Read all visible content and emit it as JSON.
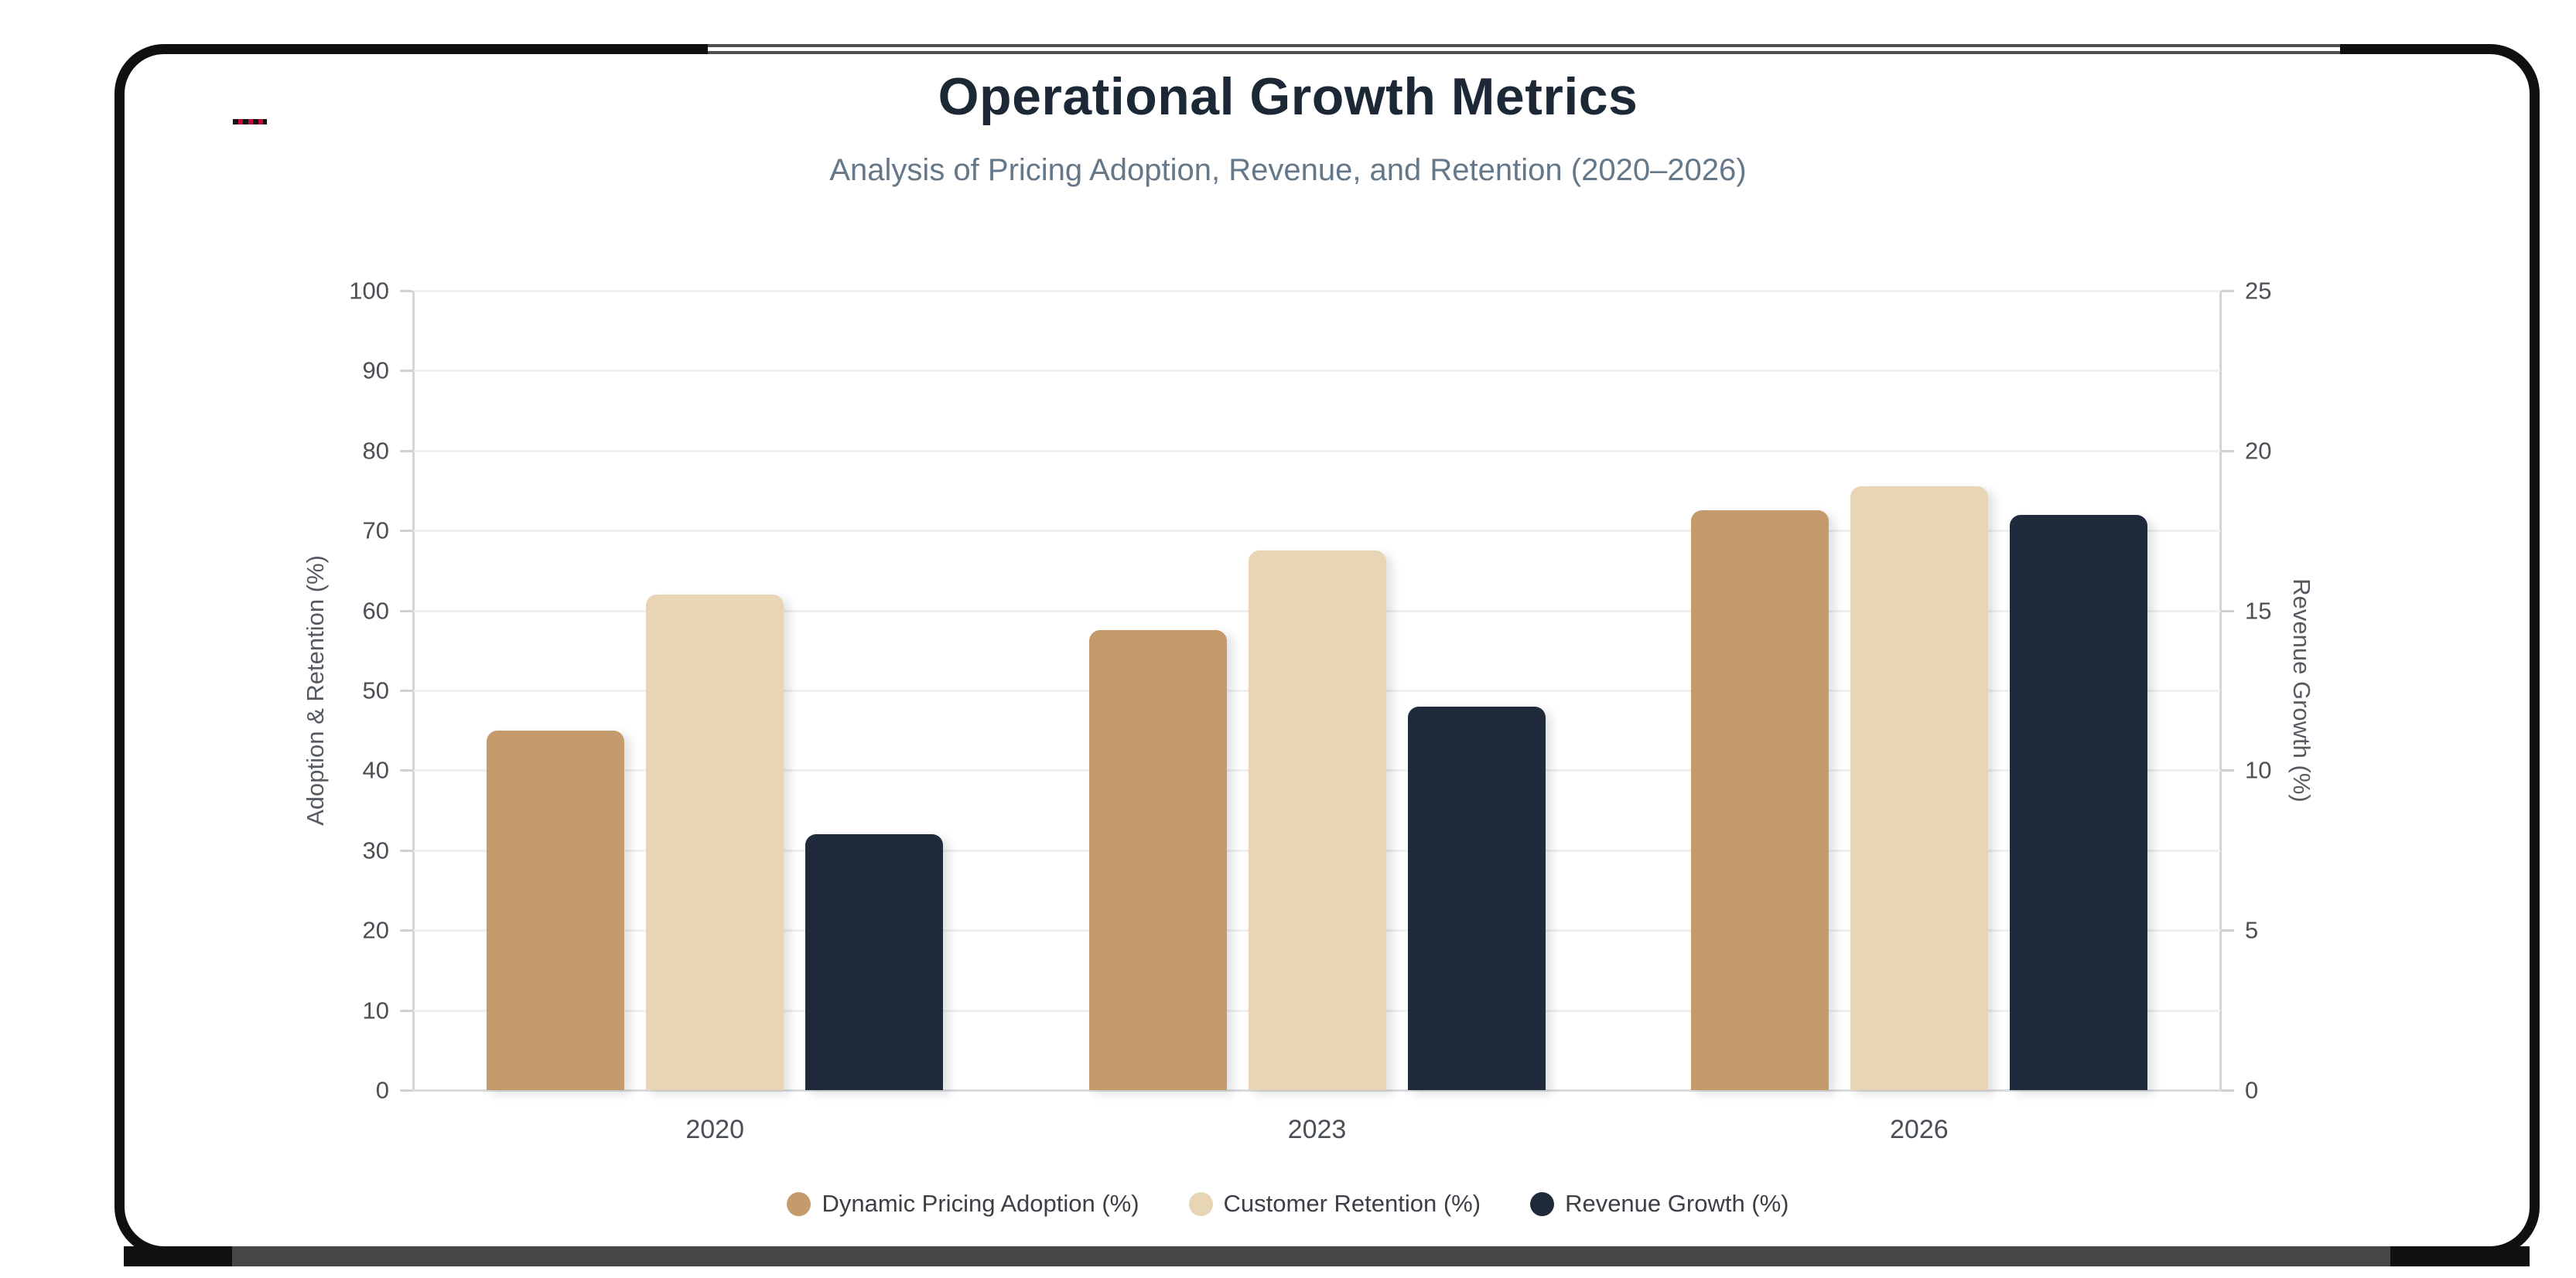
{
  "page": {
    "background": "#ffffff",
    "frame_border_color": "#101010",
    "frame_gray_accent": "#4f4f4f",
    "bottom_bar_color": "#474747",
    "red_dash_mark_colors": [
      "#151515",
      "#c40a38"
    ]
  },
  "chart_data": {
    "type": "bar",
    "title": "Operational Growth Metrics",
    "subtitle": "Analysis of Pricing Adoption, Revenue, and Retention (2020–2026)",
    "categories": [
      "2020",
      "2023",
      "2026"
    ],
    "series": [
      {
        "name": "Dynamic Pricing Adoption (%)",
        "color": "#c69b6c",
        "axis": "left",
        "values": [
          45,
          57.5,
          72.5
        ]
      },
      {
        "name": "Customer Retention (%)",
        "color": "#e8d5b6",
        "axis": "left",
        "values": [
          62,
          67.5,
          75.5
        ]
      },
      {
        "name": "Revenue Growth (%)",
        "color": "#1f2b3a",
        "axis": "right",
        "values": [
          8,
          12,
          18
        ]
      }
    ],
    "left_axis": {
      "label": "Adoption & Retention (%)",
      "min": 0,
      "max": 100,
      "ticks": [
        0,
        10,
        20,
        30,
        40,
        50,
        60,
        70,
        80,
        90,
        100
      ]
    },
    "right_axis": {
      "label": "Revenue Growth (%)",
      "min": 0,
      "max": 25,
      "ticks": [
        0,
        5,
        10,
        15,
        20,
        25
      ]
    },
    "grid": true,
    "legend_position": "bottom"
  }
}
